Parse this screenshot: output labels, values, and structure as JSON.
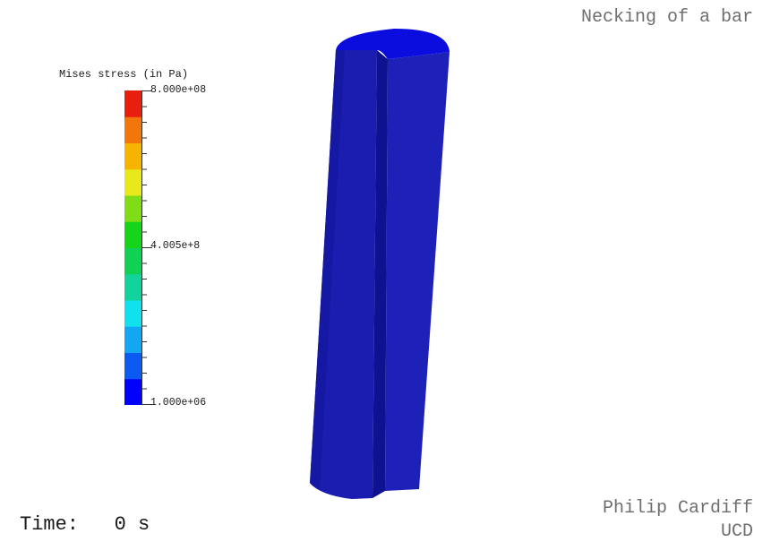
{
  "title": "Necking of a bar",
  "legend": {
    "title": "Mises stress (in Pa)",
    "max_label": "8.000e+08",
    "mid_label": "4.005e+8",
    "min_label": "1.000e+06",
    "band_colors": [
      "#0000ff",
      "#0b5bf2",
      "#13a6f2",
      "#10e1ec",
      "#12d39c",
      "#10d154",
      "#16d419",
      "#7fdc17",
      "#e8e81a",
      "#f6b400",
      "#f3760d",
      "#e91f0e"
    ]
  },
  "time": {
    "label": "Time:",
    "value": "0 s"
  },
  "credits": {
    "author": "Philip Cardiff",
    "organization": "UCD"
  },
  "model": {
    "color": "#1d20b5",
    "top_color": "#0a0ddd"
  }
}
